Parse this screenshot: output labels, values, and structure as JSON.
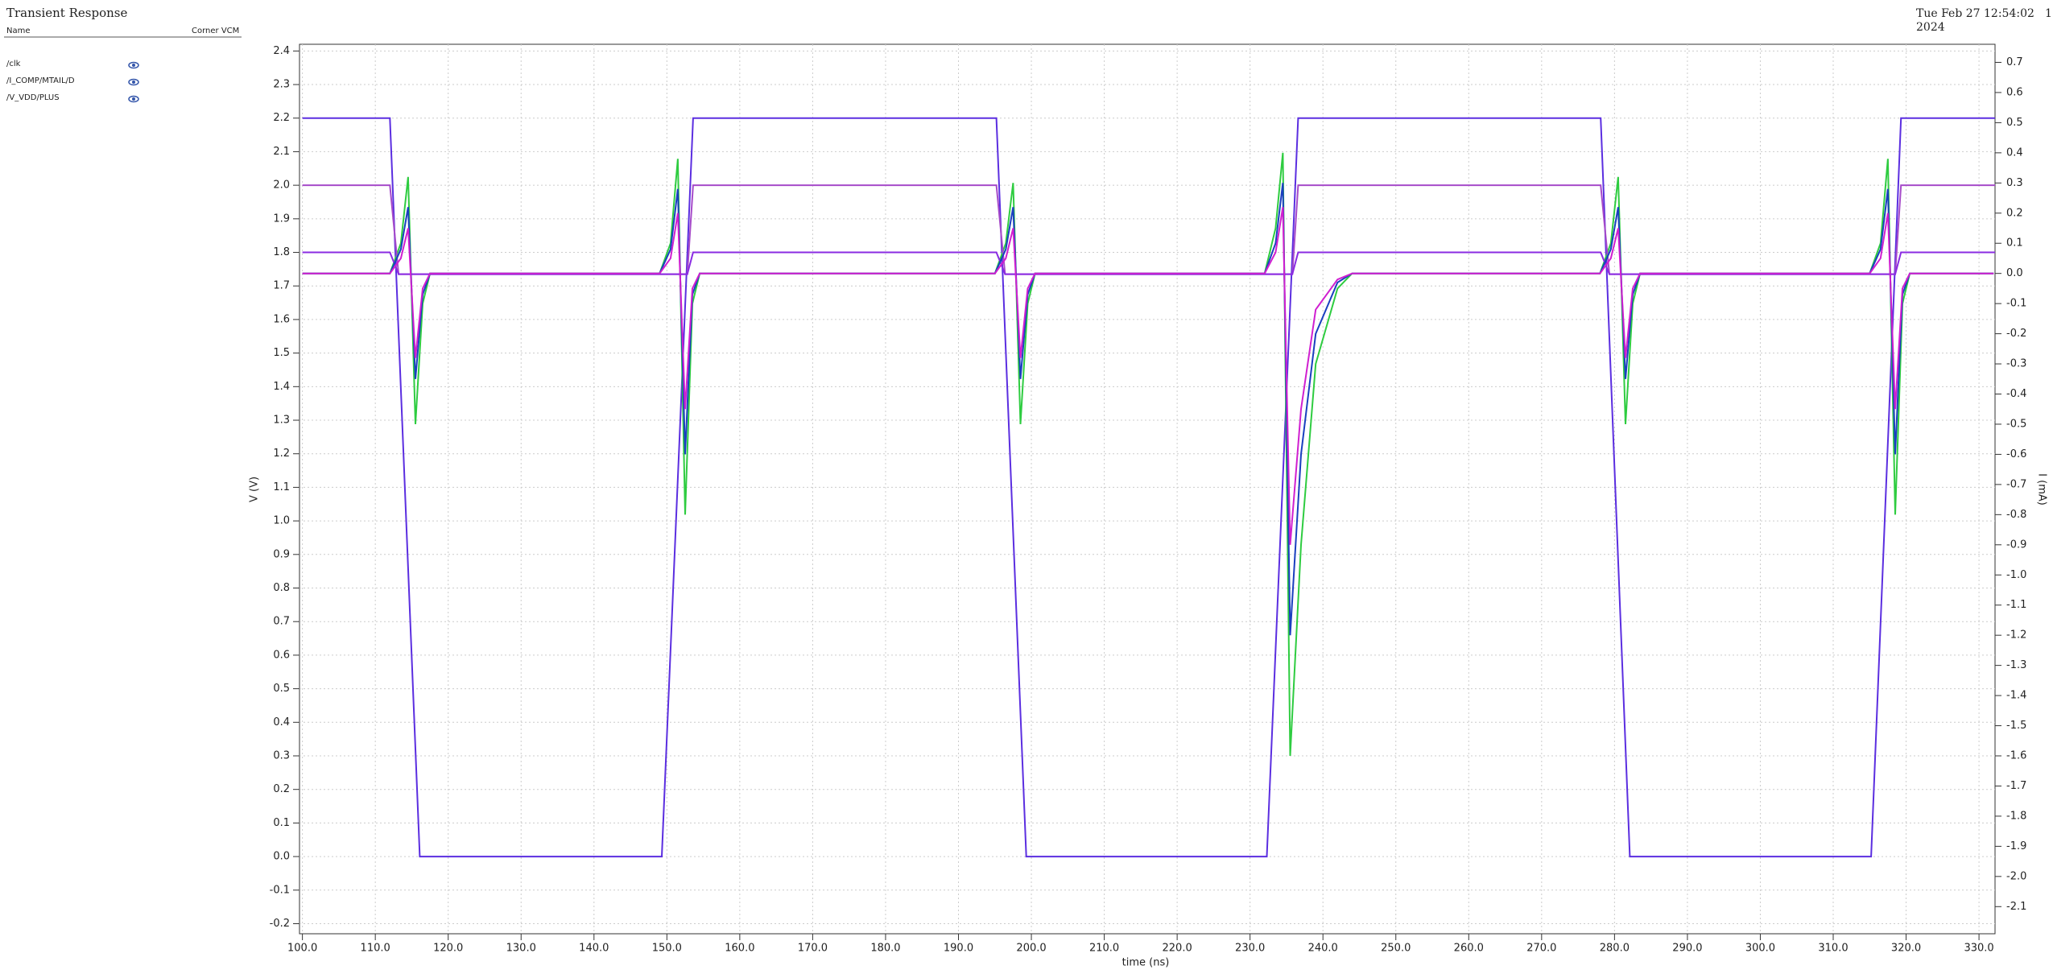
{
  "chart_data": {
    "type": "line",
    "title": "Transient Response",
    "timestamp": [
      "Tue Feb 27 12:54:02",
      "2024"
    ],
    "page_number": "1",
    "legend_header": [
      "Name",
      "Corner  VCM"
    ],
    "xlabel": "time (ns)",
    "ylabel": "V (V)",
    "y2label": "I (mA)",
    "grid": true,
    "xlim": [
      99.6,
      332.2
    ],
    "ylim": [
      -0.23,
      2.42
    ],
    "y2lim": [
      -2.19,
      0.76
    ],
    "xticks": [
      {
        "value": 100,
        "label": "100.0"
      },
      {
        "value": 110,
        "label": "110.0"
      },
      {
        "value": 120,
        "label": "120.0"
      },
      {
        "value": 130,
        "label": "130.0"
      },
      {
        "value": 140,
        "label": "140.0"
      },
      {
        "value": 150,
        "label": "150.0"
      },
      {
        "value": 160,
        "label": "160.0"
      },
      {
        "value": 170,
        "label": "170.0"
      },
      {
        "value": 180,
        "label": "180.0"
      },
      {
        "value": 190,
        "label": "190.0"
      },
      {
        "value": 200,
        "label": "200.0"
      },
      {
        "value": 210,
        "label": "210.0"
      },
      {
        "value": 220,
        "label": "220.0"
      },
      {
        "value": 230,
        "label": "230.0"
      },
      {
        "value": 240,
        "label": "240.0"
      },
      {
        "value": 250,
        "label": "250.0"
      },
      {
        "value": 260,
        "label": "260.0"
      },
      {
        "value": 270,
        "label": "270.0"
      },
      {
        "value": 280,
        "label": "280.0"
      },
      {
        "value": 290,
        "label": "290.0"
      },
      {
        "value": 300,
        "label": "300.0"
      },
      {
        "value": 310,
        "label": "310.0"
      },
      {
        "value": 320,
        "label": "320.0"
      },
      {
        "value": 330,
        "label": "330.0"
      }
    ],
    "yticks": [
      -0.2,
      -0.1,
      {
        "value": 0,
        "label": "0.0"
      },
      0.1,
      0.2,
      0.3,
      0.4,
      0.5,
      0.6,
      0.7,
      0.8,
      0.9,
      {
        "value": 1,
        "label": "1.0"
      },
      1.1,
      1.2,
      1.3,
      1.4,
      1.5,
      1.6,
      1.7,
      1.8,
      1.9,
      {
        "value": 2,
        "label": "2.0"
      },
      2.1,
      2.2,
      2.3,
      2.4
    ],
    "y2ticks": [
      -2.1,
      {
        "value": -2,
        "label": "-2.0"
      },
      -1.9,
      -1.8,
      -1.7,
      -1.6,
      -1.5,
      -1.4,
      -1.3,
      -1.2,
      -1.1,
      {
        "value": -1,
        "label": "-1.0"
      },
      -0.9,
      -0.8,
      -0.7,
      -0.6,
      -0.5,
      -0.4,
      -0.3,
      -0.2,
      -0.1,
      {
        "value": 0,
        "label": "0.0"
      },
      0.1,
      0.2,
      0.3,
      0.4,
      0.5,
      0.6,
      0.7
    ],
    "series": [
      {
        "name": "/clk",
        "color": "#5b2ee0",
        "axis": "y",
        "x": [
          100,
          112,
          116.1,
          149.3,
          153.6,
          195.2,
          199.3,
          232.3,
          236.6,
          278.1,
          282.1,
          315.2,
          319.3,
          332.2
        ],
        "values": [
          2.2,
          2.2,
          0,
          0,
          2.2,
          2.2,
          0,
          0,
          2.2,
          2.2,
          0,
          0,
          2.2,
          2.2
        ]
      },
      {
        "name": "/I_COMP/MTAIL/D",
        "color": "#2ecc40",
        "axis": "y2",
        "x": [
          100,
          112,
          113.5,
          114.5,
          115.5,
          116.5,
          117.5,
          149,
          150.5,
          151.5,
          152.5,
          153.5,
          154.5,
          195,
          196.5,
          197.5,
          198.5,
          199.5,
          200.5,
          232,
          233.5,
          234.5,
          235.5,
          237,
          239,
          242,
          244,
          278,
          279.5,
          280.5,
          281.5,
          282.5,
          283.5,
          315,
          316.5,
          317.5,
          318.5,
          319.5,
          320.5,
          332
        ],
        "values": [
          0,
          0,
          0.1,
          0.32,
          -0.5,
          -0.1,
          0,
          0,
          0.1,
          0.38,
          -0.8,
          -0.1,
          0,
          0,
          0.1,
          0.3,
          -0.5,
          -0.1,
          0,
          0,
          0.15,
          0.4,
          -1.6,
          -0.9,
          -0.3,
          -0.05,
          0,
          0,
          0.1,
          0.32,
          -0.5,
          -0.1,
          0,
          0,
          0.1,
          0.38,
          -0.8,
          -0.1,
          0,
          0
        ]
      },
      {
        "name": "/V_VDD/PLUS",
        "color": "#a64bc9",
        "axis": "y",
        "x": [
          100,
          112,
          113.2,
          152.8,
          153.6,
          195.2,
          196.4,
          235.8,
          236.6,
          278.1,
          279.3,
          318.5,
          319.3,
          332.2
        ],
        "values": [
          2.0,
          2.0,
          1.735,
          1.735,
          2.0,
          2.0,
          1.735,
          1.735,
          2.0,
          2.0,
          1.735,
          1.735,
          2.0,
          2.0
        ]
      },
      {
        "color": "#8a2be2",
        "axis": "y",
        "x": [
          100,
          112,
          113.2,
          152.8,
          153.6,
          195.2,
          196.4,
          235.8,
          236.6,
          278.1,
          279.3,
          318.5,
          319.3,
          332.2
        ],
        "values": [
          1.8,
          1.8,
          1.735,
          1.735,
          1.8,
          1.8,
          1.735,
          1.735,
          1.8,
          1.8,
          1.735,
          1.735,
          1.8,
          1.8
        ]
      },
      {
        "color": "#1a3fbf",
        "axis": "y2",
        "x": [
          100,
          112,
          113.5,
          114.5,
          115.5,
          116.5,
          117.5,
          149,
          150.5,
          151.5,
          152.5,
          153.5,
          154.5,
          195,
          196.5,
          197.5,
          198.5,
          199.5,
          200.5,
          232,
          233.5,
          234.5,
          235.5,
          237,
          239,
          242,
          244,
          278,
          279.5,
          280.5,
          281.5,
          282.5,
          283.5,
          315,
          316.5,
          317.5,
          318.5,
          319.5,
          320.5,
          332
        ],
        "values": [
          0,
          0,
          0.08,
          0.22,
          -0.35,
          -0.07,
          0,
          0,
          0.08,
          0.28,
          -0.6,
          -0.07,
          0,
          0,
          0.08,
          0.22,
          -0.35,
          -0.07,
          0,
          0,
          0.1,
          0.3,
          -1.2,
          -0.6,
          -0.2,
          -0.03,
          0,
          0,
          0.08,
          0.22,
          -0.35,
          -0.07,
          0,
          0,
          0.08,
          0.28,
          -0.6,
          -0.07,
          0,
          0
        ]
      },
      {
        "color": "#d01fd0",
        "axis": "y2",
        "x": [
          100,
          112,
          113.5,
          114.5,
          115.5,
          116.5,
          117.5,
          149,
          150.5,
          151.5,
          152.5,
          153.5,
          154.5,
          195,
          196.5,
          197.5,
          198.5,
          199.5,
          200.5,
          232,
          233.5,
          234.5,
          235.5,
          237,
          239,
          242,
          244,
          278,
          279.5,
          280.5,
          281.5,
          282.5,
          283.5,
          315,
          316.5,
          317.5,
          318.5,
          319.5,
          320.5,
          332
        ],
        "values": [
          0,
          0,
          0.05,
          0.15,
          -0.28,
          -0.05,
          0,
          0,
          0.05,
          0.2,
          -0.45,
          -0.05,
          0,
          0,
          0.05,
          0.15,
          -0.28,
          -0.05,
          0,
          0,
          0.07,
          0.22,
          -0.9,
          -0.45,
          -0.12,
          -0.02,
          0,
          0,
          0.05,
          0.15,
          -0.28,
          -0.05,
          0,
          0,
          0.05,
          0.2,
          -0.45,
          -0.05,
          0,
          0
        ]
      }
    ]
  }
}
